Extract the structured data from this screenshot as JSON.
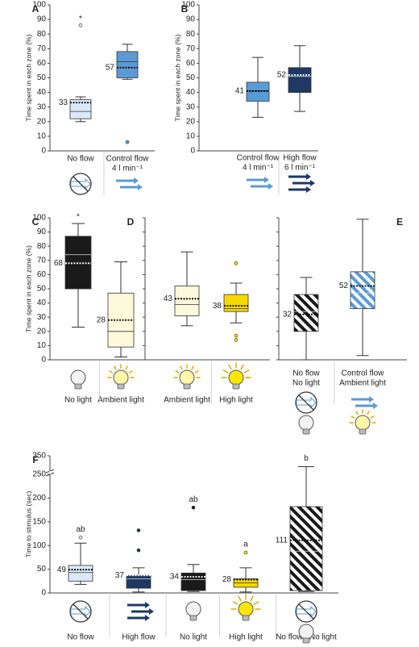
{
  "chart_data": [
    {
      "type": "box",
      "panel": "A",
      "ylabel": "Time spent in each zone (%)",
      "ylim": [
        0,
        100
      ],
      "yticks": [
        0,
        10,
        20,
        30,
        40,
        50,
        60,
        70,
        80,
        90,
        100
      ],
      "ytick_labels": true,
      "categories": [
        [
          "No flow"
        ],
        [
          "Control flow",
          "4 l min⁻¹"
        ]
      ],
      "boxes": [
        {
          "min": 20,
          "q1": 22,
          "median": 27,
          "q3": 35,
          "max": 37,
          "mean": 33,
          "outliers": [
            86
          ],
          "color": "#dce9f7",
          "annotation": "*"
        },
        {
          "min": 49,
          "q1": 50,
          "median": 61,
          "q3": 68,
          "max": 73,
          "mean": 57,
          "outliers": [
            6
          ],
          "color": "#5b9bd5"
        }
      ]
    },
    {
      "type": "box",
      "panel": "B",
      "ylabel": "Time spent in each zone (%)",
      "ylim": [
        0,
        100
      ],
      "yticks": [
        0,
        10,
        20,
        30,
        40,
        50,
        60,
        70,
        80,
        90,
        100
      ],
      "ytick_labels": true,
      "categories": [
        [
          "Control flow",
          "4 l min⁻¹"
        ],
        [
          "High flow",
          "6 l min⁻¹"
        ]
      ],
      "boxes": [
        {
          "min": 23,
          "q1": 34,
          "median": 41,
          "q3": 47,
          "max": 64,
          "mean": 41,
          "outliers": [],
          "color": "#5b9bd5"
        },
        {
          "min": 27,
          "q1": 40,
          "median": 51,
          "q3": 57,
          "max": 72,
          "mean": 52,
          "outliers": [],
          "color": "#1f3864"
        }
      ]
    },
    {
      "type": "box",
      "panel": "C",
      "ylabel": "Time spent in each zone (%)",
      "ylim": [
        0,
        100
      ],
      "yticks": [
        0,
        10,
        20,
        30,
        40,
        50,
        60,
        70,
        80,
        90,
        100
      ],
      "ytick_labels": true,
      "categories": [
        [
          "No light"
        ],
        [
          "Ambient light"
        ]
      ],
      "boxes": [
        {
          "min": 23,
          "q1": 50,
          "median": 74,
          "q3": 87,
          "max": 96,
          "mean": 68,
          "outliers": [],
          "color": "#1a1a1a",
          "annotation": "*"
        },
        {
          "min": 2,
          "q1": 9,
          "median": 20,
          "q3": 47,
          "max": 69,
          "mean": 28,
          "outliers": [],
          "color": "#fff9db"
        }
      ]
    },
    {
      "type": "box",
      "panel": "D",
      "ylim": [
        0,
        100
      ],
      "yticks": [
        0,
        10,
        20,
        30,
        40,
        50,
        60,
        70,
        80,
        90,
        100
      ],
      "ytick_labels": false,
      "categories": [
        [
          "Ambient light"
        ],
        [
          "High light"
        ]
      ],
      "boxes": [
        {
          "min": 24,
          "q1": 31,
          "median": 39,
          "q3": 52,
          "max": 76,
          "mean": 43,
          "outliers": [],
          "color": "#fff9db"
        },
        {
          "min": 26,
          "q1": 34,
          "median": 36,
          "q3": 46,
          "max": 54,
          "mean": 38,
          "outliers": [
            68,
            17,
            14
          ],
          "color": "#f5d800"
        }
      ]
    },
    {
      "type": "box",
      "panel": "E",
      "ylim": [
        0,
        100
      ],
      "yticks": [
        0,
        10,
        20,
        30,
        40,
        50,
        60,
        70,
        80,
        90,
        100
      ],
      "ytick_labels": false,
      "categories": [
        [
          "No flow",
          "No light"
        ],
        [
          "Control flow",
          "Ambient light"
        ]
      ],
      "boxes": [
        {
          "min": 0,
          "q1": 20,
          "median": 34,
          "q3": 46,
          "max": 58,
          "mean": 32,
          "outliers": [],
          "color": "#1a1a1a",
          "hatch": true
        },
        {
          "min": 3,
          "q1": 36,
          "median": 47,
          "q3": 62,
          "max": 99,
          "mean": 52,
          "outliers": [],
          "color": "#5b9bd5",
          "hatch": true
        }
      ]
    },
    {
      "type": "box",
      "panel": "F",
      "ylabel": "Time to stimulus (sec)",
      "ylim": [
        0,
        350
      ],
      "axis_break": 250,
      "yticks": [
        0,
        50,
        100,
        150,
        200,
        250,
        350
      ],
      "ytick_labels": true,
      "categories": [
        [
          "No flow"
        ],
        [
          "High flow"
        ],
        [
          "No light"
        ],
        [
          "High light"
        ],
        [
          "No flow / No light"
        ]
      ],
      "boxes": [
        {
          "min": 18,
          "q1": 25,
          "median": 43,
          "q3": 58,
          "max": 105,
          "mean": 49,
          "outliers": [
            117
          ],
          "color": "#dce9f7",
          "annotation": "ab"
        },
        {
          "min": 2,
          "q1": 10,
          "median": 30,
          "q3": 37,
          "max": 53,
          "mean": 37,
          "outliers": [
            132,
            90
          ],
          "color": "#1f3864"
        },
        {
          "min": 3,
          "q1": 5,
          "median": 28,
          "q3": 42,
          "max": 60,
          "mean": 34,
          "outliers": [
            180
          ],
          "color": "#1a1a1a",
          "annotation": "ab"
        },
        {
          "min": 2,
          "q1": 12,
          "median": 21,
          "q3": 30,
          "max": 53,
          "mean": 28,
          "outliers": [
            85
          ],
          "color": "#f5d800",
          "annotation": "a"
        },
        {
          "min": 3,
          "q1": 5,
          "median": 88,
          "q3": 182,
          "max": 260,
          "mean": 111,
          "outliers": [],
          "color": "#1a1a1a",
          "hatch": true,
          "annotation": "b"
        }
      ]
    }
  ]
}
